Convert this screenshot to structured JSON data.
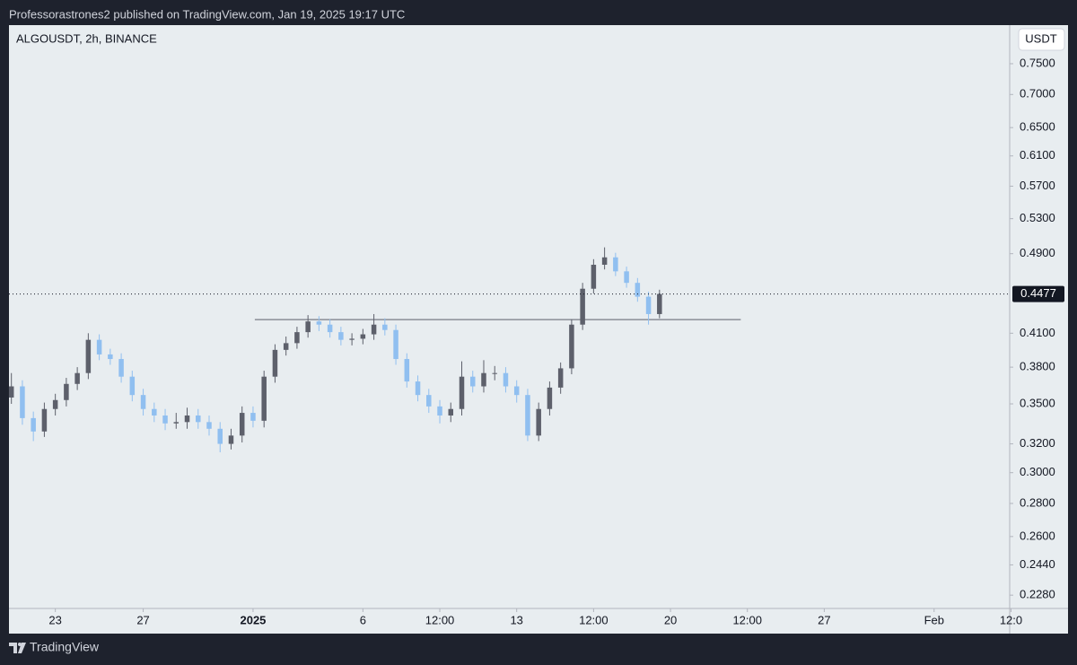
{
  "header": {
    "text": "Professorastrones2 published on TradingView.com, Jan 19, 2025 19:17 UTC"
  },
  "footer": {
    "brand": "TradingView"
  },
  "chart_data": {
    "type": "candlestick",
    "title": "ALGOUSDT, 2h, BINANCE",
    "y_axis_label": "USDT",
    "log_scale": true,
    "grid": false,
    "up_color": "#5d606b",
    "down_color": "#90bff0",
    "x": [
      -11,
      -10.5,
      -10,
      -9.5,
      -9,
      -8.5,
      -8,
      -7.5,
      -7,
      -6.5,
      -6,
      -5.5,
      -5,
      -4.5,
      -4,
      -3.5,
      -3,
      -2.5,
      -2,
      -1.5,
      -1,
      -0.5,
      0,
      0.5,
      1,
      1.5,
      2,
      2.5,
      3,
      3.5,
      4,
      4.5,
      5,
      5.5,
      6,
      6.5,
      7,
      7.5,
      8,
      8.5,
      9,
      9.5,
      10,
      10.5,
      11,
      11.5,
      12,
      12.5,
      13,
      13.5,
      14,
      14.5,
      15,
      15.5,
      16,
      16.5,
      17,
      17.5,
      18,
      18.5
    ],
    "open": [
      0.355,
      0.364,
      0.339,
      0.329,
      0.346,
      0.353,
      0.366,
      0.375,
      0.404,
      0.391,
      0.387,
      0.372,
      0.357,
      0.346,
      0.341,
      0.335,
      0.336,
      0.341,
      0.336,
      0.331,
      0.32,
      0.326,
      0.343,
      0.337,
      0.372,
      0.395,
      0.401,
      0.411,
      0.421,
      0.418,
      0.411,
      0.404,
      0.405,
      0.409,
      0.418,
      0.413,
      0.387,
      0.368,
      0.357,
      0.348,
      0.341,
      0.346,
      0.372,
      0.364,
      0.375,
      0.375,
      0.364,
      0.357,
      0.326,
      0.346,
      0.363,
      0.379,
      0.418,
      0.453,
      0.478,
      0.486,
      0.471,
      0.459,
      0.445,
      0.428
    ],
    "high": [
      0.375,
      0.369,
      0.344,
      0.351,
      0.358,
      0.371,
      0.38,
      0.41,
      0.409,
      0.396,
      0.392,
      0.377,
      0.362,
      0.351,
      0.346,
      0.343,
      0.347,
      0.346,
      0.341,
      0.336,
      0.331,
      0.348,
      0.348,
      0.377,
      0.4,
      0.407,
      0.416,
      0.427,
      0.426,
      0.423,
      0.416,
      0.41,
      0.414,
      0.428,
      0.424,
      0.418,
      0.392,
      0.373,
      0.362,
      0.353,
      0.351,
      0.385,
      0.377,
      0.386,
      0.381,
      0.38,
      0.369,
      0.362,
      0.351,
      0.368,
      0.384,
      0.423,
      0.459,
      0.484,
      0.497,
      0.491,
      0.476,
      0.464,
      0.45,
      0.452
    ],
    "low": [
      0.35,
      0.334,
      0.322,
      0.325,
      0.341,
      0.348,
      0.361,
      0.37,
      0.386,
      0.382,
      0.367,
      0.352,
      0.341,
      0.336,
      0.33,
      0.331,
      0.331,
      0.331,
      0.326,
      0.314,
      0.316,
      0.321,
      0.332,
      0.332,
      0.367,
      0.39,
      0.396,
      0.406,
      0.412,
      0.406,
      0.399,
      0.399,
      0.4,
      0.404,
      0.408,
      0.382,
      0.363,
      0.352,
      0.343,
      0.335,
      0.336,
      0.341,
      0.359,
      0.359,
      0.369,
      0.359,
      0.351,
      0.322,
      0.322,
      0.341,
      0.358,
      0.374,
      0.413,
      0.448,
      0.473,
      0.466,
      0.454,
      0.44,
      0.418,
      0.424
    ],
    "close": [
      0.364,
      0.339,
      0.329,
      0.346,
      0.353,
      0.366,
      0.375,
      0.404,
      0.391,
      0.387,
      0.372,
      0.357,
      0.346,
      0.341,
      0.335,
      0.336,
      0.341,
      0.336,
      0.331,
      0.32,
      0.326,
      0.343,
      0.337,
      0.372,
      0.395,
      0.401,
      0.411,
      0.421,
      0.418,
      0.411,
      0.404,
      0.405,
      0.409,
      0.418,
      0.413,
      0.387,
      0.368,
      0.357,
      0.348,
      0.341,
      0.346,
      0.372,
      0.364,
      0.375,
      0.375,
      0.364,
      0.357,
      0.326,
      0.346,
      0.363,
      0.379,
      0.418,
      0.453,
      0.478,
      0.486,
      0.471,
      0.459,
      0.445,
      0.428,
      0.4477
    ],
    "xlim": [
      -11.11,
      34.44
    ],
    "xticks": [
      {
        "value": -9,
        "label": "23"
      },
      {
        "value": -5,
        "label": "27"
      },
      {
        "value": 0,
        "label": "2025"
      },
      {
        "value": 5,
        "label": "6"
      },
      {
        "value": 8.5,
        "label": "12:00"
      },
      {
        "value": 12,
        "label": "13"
      },
      {
        "value": 15.5,
        "label": "12:00"
      },
      {
        "value": 19,
        "label": "20"
      },
      {
        "value": 22.5,
        "label": "12:00"
      },
      {
        "value": 26,
        "label": "27"
      },
      {
        "value": 31,
        "label": "Feb"
      },
      {
        "value": 34.5,
        "label": "12:0"
      }
    ],
    "ylim": [
      0.2213,
      0.8177
    ],
    "yticks": [
      {
        "value": 0.75,
        "label": "0.7500"
      },
      {
        "value": 0.7,
        "label": "0.7000"
      },
      {
        "value": 0.65,
        "label": "0.6500"
      },
      {
        "value": 0.61,
        "label": "0.6100"
      },
      {
        "value": 0.57,
        "label": "0.5700"
      },
      {
        "value": 0.53,
        "label": "0.5300"
      },
      {
        "value": 0.49,
        "label": "0.4900"
      },
      {
        "value": 0.41,
        "label": "0.4100"
      },
      {
        "value": 0.38,
        "label": "0.3800"
      },
      {
        "value": 0.35,
        "label": "0.3500"
      },
      {
        "value": 0.32,
        "label": "0.3200"
      },
      {
        "value": 0.3,
        "label": "0.3000"
      },
      {
        "value": 0.28,
        "label": "0.2800"
      },
      {
        "value": 0.26,
        "label": "0.2600"
      },
      {
        "value": 0.244,
        "label": "0.2440"
      },
      {
        "value": 0.228,
        "label": "0.2280"
      }
    ],
    "last_price": 0.4477,
    "hline": {
      "value": 0.4227,
      "x": [
        0.08,
        22.2
      ],
      "color": "#787b86"
    }
  }
}
